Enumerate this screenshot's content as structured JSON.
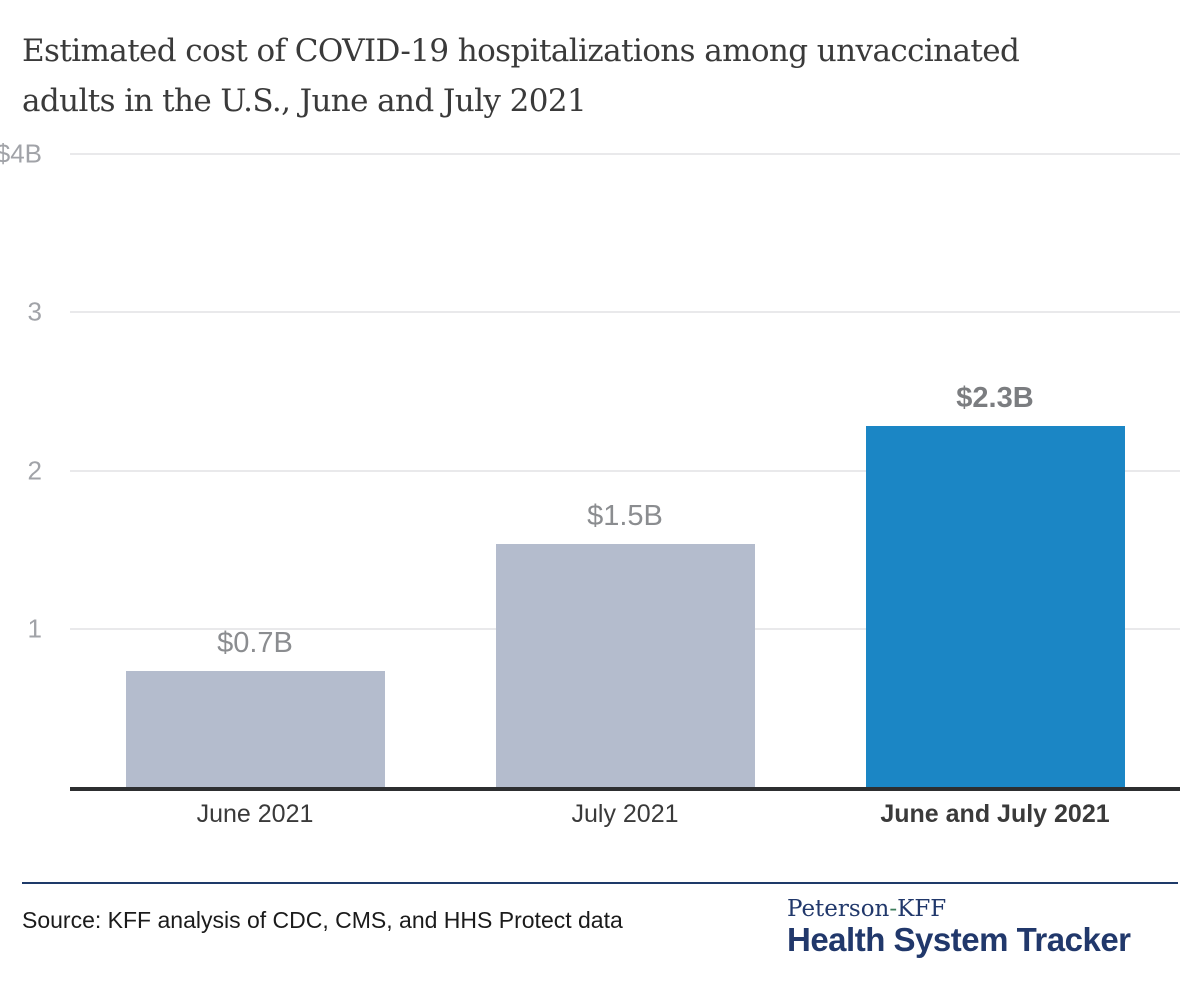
{
  "title": {
    "line1": "Estimated cost of COVID-19 hospitalizations among unvaccinated",
    "line2": "adults in the U.S., June and July 2021"
  },
  "chart_data": {
    "type": "bar",
    "title": "Estimated cost of COVID-19 hospitalizations among unvaccinated adults in the U.S., June and July 2021",
    "categories": [
      "June 2021",
      "July 2021",
      "June and July 2021"
    ],
    "values": [
      0.73,
      1.53,
      2.27
    ],
    "value_labels": [
      "$0.7B",
      "$1.5B",
      "$2.3B"
    ],
    "unit": "billions of U.S. dollars",
    "xlabel": "",
    "ylabel": "",
    "ylim": [
      0,
      4
    ],
    "yticks": [
      {
        "value": 4,
        "label": "$4B"
      },
      {
        "value": 3,
        "label": "3"
      },
      {
        "value": 2,
        "label": "2"
      },
      {
        "value": 1,
        "label": "1"
      }
    ],
    "grid": "horizontal gridlines on",
    "legend": "none",
    "highlight_index": 2,
    "bar_colors": [
      "#b4bccd",
      "#b4bccd",
      "#1b86c5"
    ]
  },
  "colors": {
    "bar_gray": "#b4bccd",
    "bar_blue": "#1b86c5",
    "gridline": "#e9e9eb",
    "axis_line": "#2d2e30",
    "tick_label": "#a1a3a8",
    "value_label": "#8b8d90",
    "title_text": "#3a3a3a",
    "navy": "#21386b"
  },
  "footer": {
    "source": "Source: KFF analysis of CDC, CMS, and HHS Protect data",
    "logo": {
      "top_pre": "Peterson",
      "top_hyphen": "-",
      "top_post": "KFF",
      "bottom": "Health System Tracker"
    }
  }
}
